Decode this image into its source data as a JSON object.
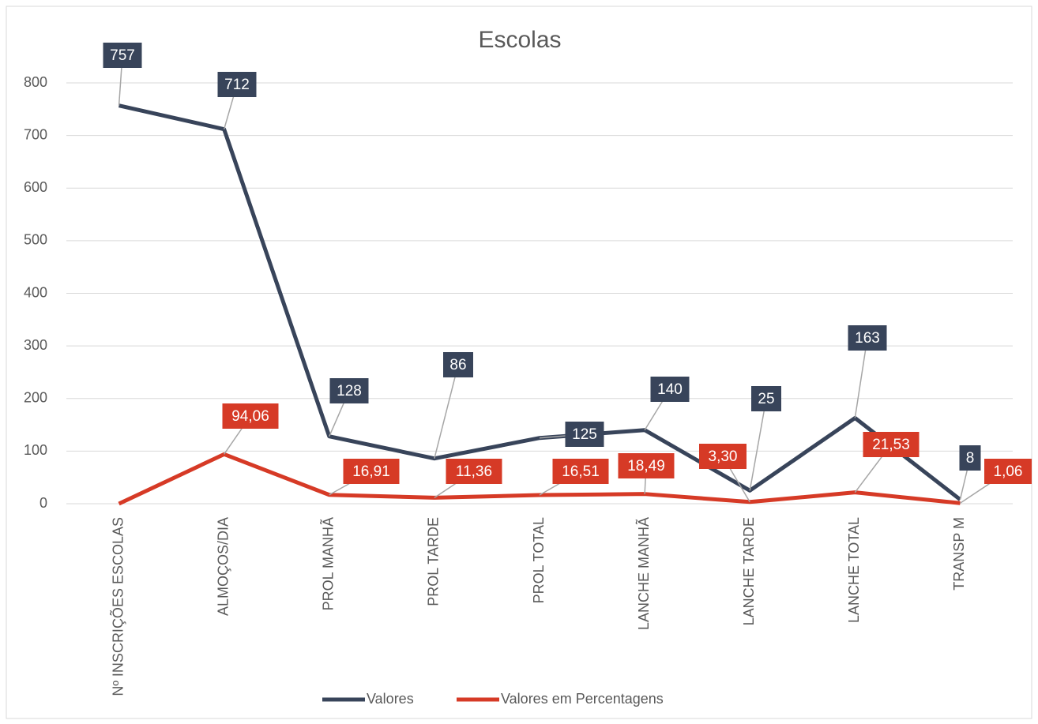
{
  "chart_data": {
    "type": "line",
    "title": "Escolas",
    "categories": [
      "Nº INSCRIÇÕES ESCOLAS",
      "ALMOÇOS/DIA",
      "PROL MANHÃ",
      "PROL TARDE",
      "PROL TOTAL",
      "LANCHE MANHÃ",
      "LANCHE TARDE",
      "LANCHE TOTAL",
      "TRANSP M"
    ],
    "series": [
      {
        "name": "Valores",
        "color": "#38445a",
        "values": [
          757,
          712,
          128,
          86,
          125,
          140,
          25,
          163,
          8
        ]
      },
      {
        "name": "Valores em Percentagens",
        "color": "#d63a26",
        "values": [
          0,
          94.06,
          16.91,
          11.36,
          16.51,
          18.49,
          3.3,
          21.53,
          1.06
        ],
        "value_labels": [
          null,
          "94,06",
          "16,91",
          "11,36",
          "16,51",
          "18,49",
          "3,30",
          "21,53",
          "1,06"
        ]
      }
    ],
    "ylim": [
      0,
      800
    ],
    "yticks": [
      0,
      100,
      200,
      300,
      400,
      500,
      600,
      700,
      800
    ],
    "grid": true,
    "legend": "bottom"
  }
}
